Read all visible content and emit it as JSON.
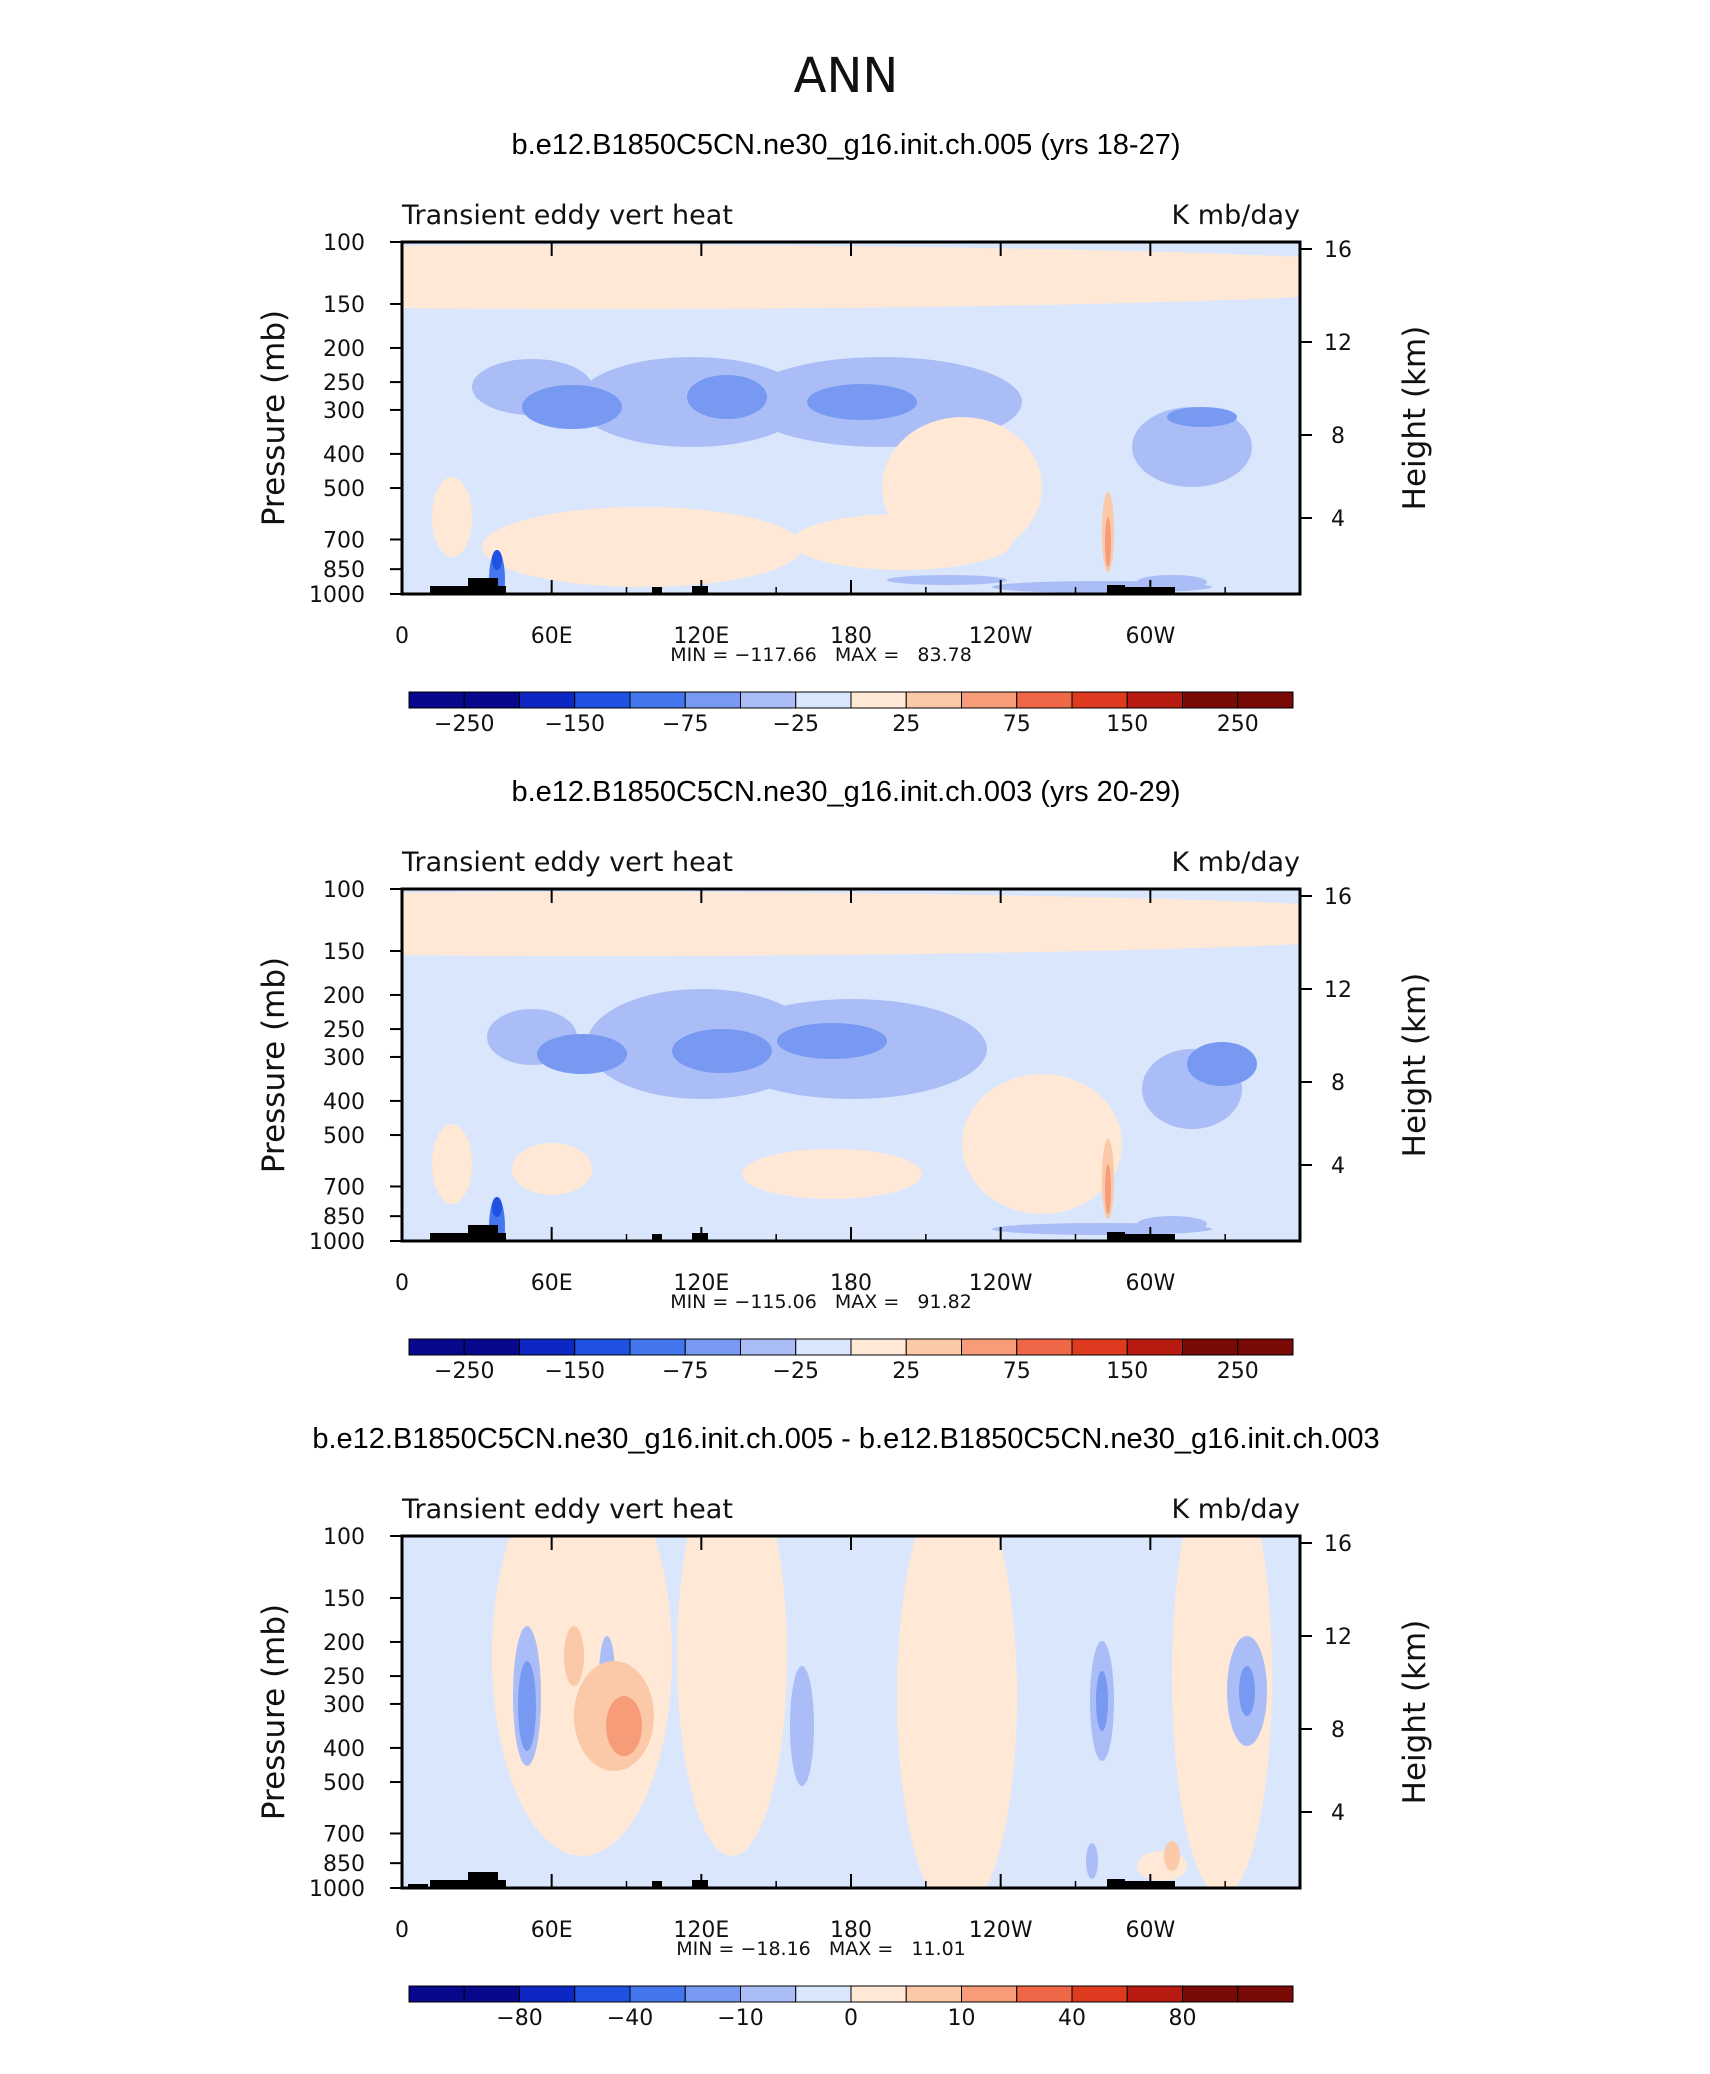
{
  "page_title": "ANN",
  "colors": {
    "cmap": [
      "#08088c",
      "#0d28c2",
      "#1f52e3",
      "#4477ee",
      "#7799f2",
      "#aabdf6",
      "#d9e6fc",
      "#ffe9d6",
      "#fbc8a8",
      "#f69c79",
      "#ef6746",
      "#dd3a1f",
      "#b61a10",
      "#7a0a05"
    ]
  },
  "panels": [
    {
      "title": "b.e12.B1850C5CN.ne30_g16.init.ch.005 (yrs 18-27)",
      "left_label": "Transient eddy vert heat",
      "right_label": "K mb/day",
      "stats": "MIN = −117.66   MAX =   83.78",
      "colorbar_labels": [
        "−250",
        "−150",
        "−75",
        "−25",
        "25",
        "75",
        "150",
        "250"
      ]
    },
    {
      "title": "b.e12.B1850C5CN.ne30_g16.init.ch.003 (yrs 20-29)",
      "left_label": "Transient eddy vert heat",
      "right_label": "K mb/day",
      "stats": "MIN = −115.06   MAX =   91.82",
      "colorbar_labels": [
        "−250",
        "−150",
        "−75",
        "−25",
        "25",
        "75",
        "150",
        "250"
      ]
    },
    {
      "title": "b.e12.B1850C5CN.ne30_g16.init.ch.005 - b.e12.B1850C5CN.ne30_g16.init.ch.003",
      "left_label": "Transient eddy vert heat",
      "right_label": "K mb/day",
      "stats": "MIN = −18.16   MAX =   11.01",
      "colorbar_labels": [
        "−80",
        "−40",
        "−10",
        "0",
        "10",
        "40",
        "80"
      ]
    }
  ],
  "chart_data": [
    {
      "type": "heatmap",
      "title": "b.e12.B1850C5CN.ne30_g16.init.ch.005 (yrs 18-27)",
      "subtitle_left": "Transient eddy vert heat",
      "units": "K mb/day",
      "xlabel": "",
      "ylabel": "Pressure (mb)",
      "ylabel_right": "Height (km)",
      "x_ticks": [
        "0",
        "60E",
        "120E",
        "180",
        "120W",
        "60W"
      ],
      "y_ticks": [
        "100",
        "150",
        "200",
        "250",
        "300",
        "400",
        "500",
        "700",
        "850",
        "1000"
      ],
      "y_ticks_right": [
        "16",
        "12",
        "8",
        "4"
      ],
      "ylim": [
        1000,
        100
      ],
      "y_scale": "log",
      "contour_levels": [
        -250,
        -200,
        -150,
        -100,
        -75,
        -50,
        -25,
        0,
        25,
        50,
        75,
        100,
        150,
        200,
        250
      ],
      "colorbar_labels": [
        "−250",
        "−150",
        "−75",
        "−25",
        "25",
        "75",
        "150",
        "250"
      ],
      "min": -117.66,
      "max": 83.78
    },
    {
      "type": "heatmap",
      "title": "b.e12.B1850C5CN.ne30_g16.init.ch.003 (yrs 20-29)",
      "subtitle_left": "Transient eddy vert heat",
      "units": "K mb/day",
      "xlabel": "",
      "ylabel": "Pressure (mb)",
      "ylabel_right": "Height (km)",
      "x_ticks": [
        "0",
        "60E",
        "120E",
        "180",
        "120W",
        "60W"
      ],
      "y_ticks": [
        "100",
        "150",
        "200",
        "250",
        "300",
        "400",
        "500",
        "700",
        "850",
        "1000"
      ],
      "y_ticks_right": [
        "16",
        "12",
        "8",
        "4"
      ],
      "ylim": [
        1000,
        100
      ],
      "y_scale": "log",
      "contour_levels": [
        -250,
        -200,
        -150,
        -100,
        -75,
        -50,
        -25,
        0,
        25,
        50,
        75,
        100,
        150,
        200,
        250
      ],
      "colorbar_labels": [
        "−250",
        "−150",
        "−75",
        "−25",
        "25",
        "75",
        "150",
        "250"
      ],
      "min": -115.06,
      "max": 91.82
    },
    {
      "type": "heatmap",
      "title": "b.e12.B1850C5CN.ne30_g16.init.ch.005 - b.e12.B1850C5CN.ne30_g16.init.ch.003",
      "subtitle_left": "Transient eddy vert heat",
      "units": "K mb/day",
      "xlabel": "",
      "ylabel": "Pressure (mb)",
      "ylabel_right": "Height (km)",
      "x_ticks": [
        "0",
        "60E",
        "120E",
        "180",
        "120W",
        "60W"
      ],
      "y_ticks": [
        "100",
        "150",
        "200",
        "250",
        "300",
        "400",
        "500",
        "700",
        "850",
        "1000"
      ],
      "y_ticks_right": [
        "16",
        "12",
        "8",
        "4"
      ],
      "ylim": [
        1000,
        100
      ],
      "y_scale": "log",
      "contour_levels": [
        -100,
        -80,
        -60,
        -40,
        -20,
        -10,
        -5,
        0,
        5,
        10,
        20,
        40,
        60,
        80,
        100
      ],
      "colorbar_labels": [
        "−80",
        "−40",
        "−10",
        "0",
        "10",
        "40",
        "80"
      ],
      "min": -18.16,
      "max": 11.01
    }
  ]
}
